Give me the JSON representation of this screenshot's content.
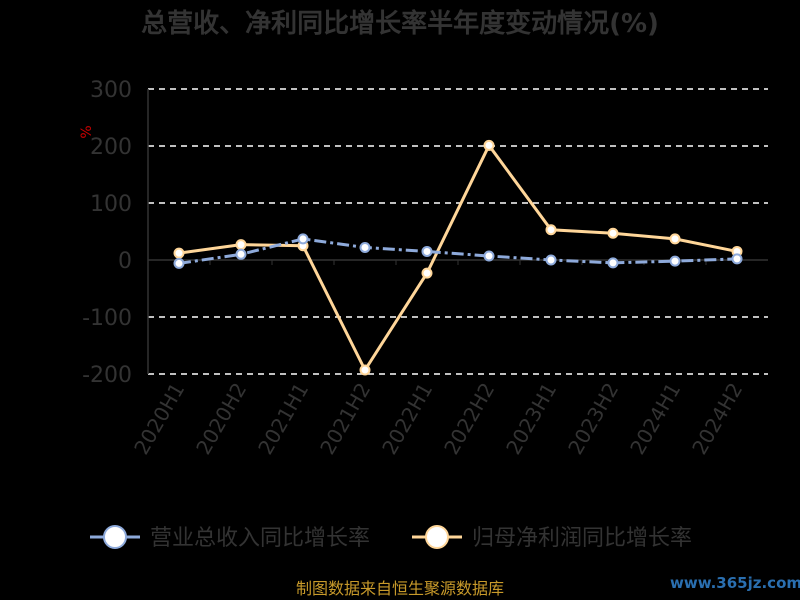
{
  "chart_data": {
    "type": "line",
    "title": "总营收、净利同比增长率半年度变动情况(%)",
    "ylabel": "%",
    "xlabel": "",
    "categories": [
      "2020H1",
      "2020H2",
      "2021H1",
      "2021H2",
      "2022H1",
      "2022H2",
      "2023H1",
      "2023H2",
      "2024H1",
      "2024H2"
    ],
    "ylim": [
      -200,
      300
    ],
    "yticks": [
      -200,
      -100,
      0,
      100,
      200,
      300
    ],
    "grid": true,
    "legend_position": "bottom",
    "series": [
      {
        "name": "营业总收入同比增长率",
        "color": "#8eaadb",
        "values": [
          -6,
          10,
          37,
          22,
          15,
          7,
          0,
          -5,
          -2,
          2
        ]
      },
      {
        "name": "归母净利润同比增长率",
        "color": "#ffd699",
        "values": [
          12,
          27,
          25,
          -193,
          -23,
          201,
          53,
          47,
          37,
          15
        ]
      }
    ]
  },
  "footer": {
    "source": "制图数据来自恒生聚源数据库",
    "watermark": "www.365jz.com"
  }
}
